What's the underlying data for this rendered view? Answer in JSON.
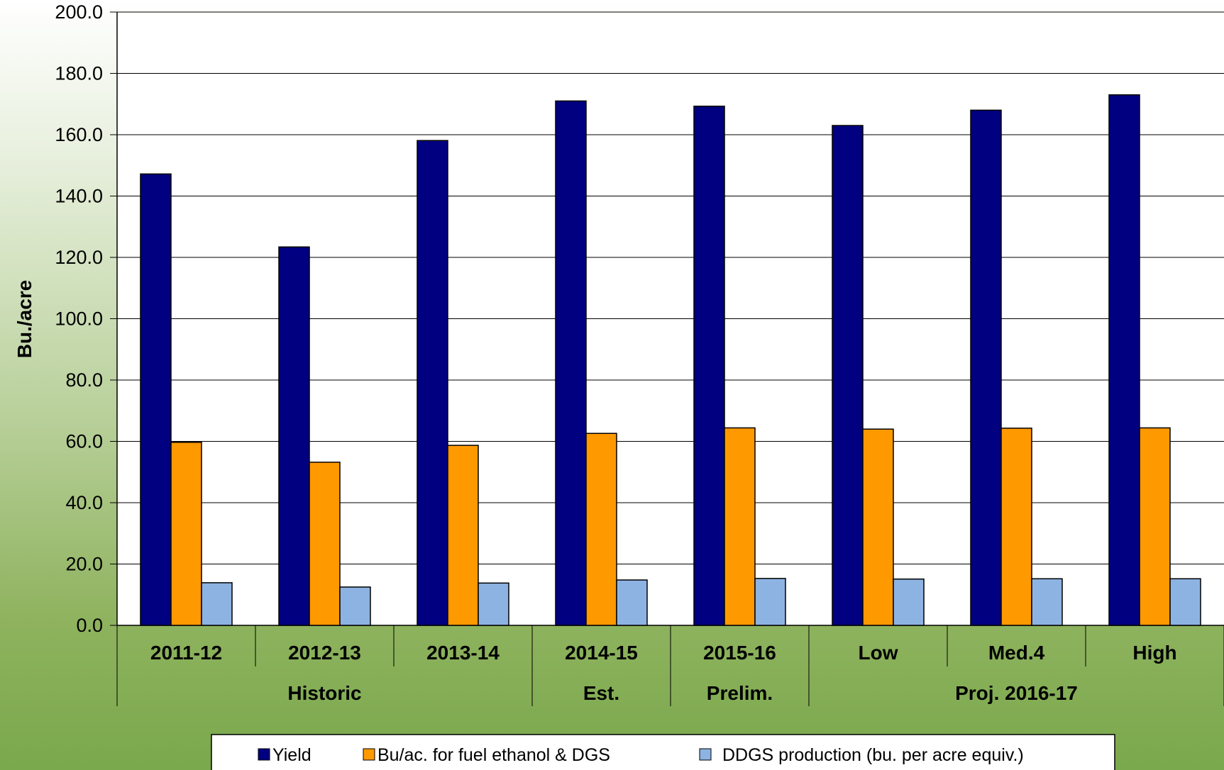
{
  "chart_data": {
    "type": "bar",
    "ylabel": "Bu./acre",
    "ylim": [
      0,
      200
    ],
    "y_ticks": [
      "0.0",
      "20.0",
      "40.0",
      "60.0",
      "80.0",
      "100.0",
      "120.0",
      "140.0",
      "160.0",
      "180.0",
      "200.0"
    ],
    "categories": [
      "2011-12",
      "2012-13",
      "2013-14",
      "2014-15",
      "2015-16",
      "Low",
      "Med.4",
      "High"
    ],
    "groups": [
      {
        "label": "Historic",
        "span": 3
      },
      {
        "label": "Est.",
        "span": 1
      },
      {
        "label": "Prelim.",
        "span": 1
      },
      {
        "label": "Proj. 2016-17",
        "span": 3
      }
    ],
    "series": [
      {
        "name": "Yield",
        "color": "#000080",
        "values": [
          147.2,
          123.4,
          158.1,
          171.0,
          169.3,
          163.0,
          168.0,
          173.0
        ]
      },
      {
        "name": "Bu/ac. for fuel ethanol & DGS",
        "color": "#ff9900",
        "values": [
          59.7,
          53.2,
          58.7,
          62.6,
          64.4,
          64.0,
          64.3,
          64.4
        ]
      },
      {
        "name": "DDGS production (bu. per acre equiv.)",
        "color": "#8db3e2",
        "values": [
          13.9,
          12.5,
          13.8,
          14.8,
          15.3,
          15.1,
          15.2,
          15.2
        ]
      }
    ],
    "grid": true,
    "legend": "bottom"
  }
}
